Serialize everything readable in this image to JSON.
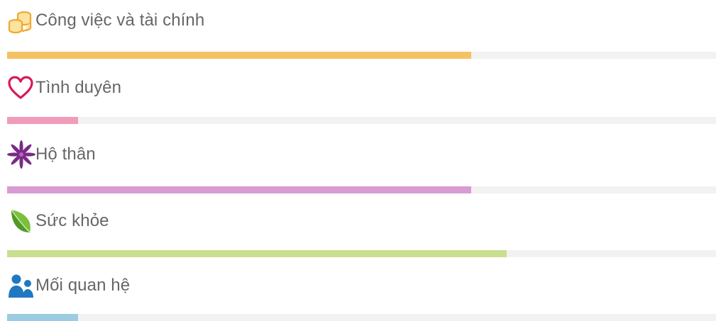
{
  "categories": [
    {
      "key": "career",
      "label": "Công việc và tài chính",
      "icon": "coins-icon",
      "color": "#f5c263",
      "level": 0.655
    },
    {
      "key": "love",
      "label": "Tình duyên",
      "icon": "heart-icon",
      "color": "#f19bba",
      "level": 0.1
    },
    {
      "key": "protection",
      "label": "Hộ thân",
      "icon": "flower-icon",
      "color": "#d99bd3",
      "level": 0.655
    },
    {
      "key": "health",
      "label": "Sức khỏe",
      "icon": "leaf-icon",
      "color": "#c9de8e",
      "level": 0.705
    },
    {
      "key": "relations",
      "label": "Mối quan hệ",
      "icon": "people-icon",
      "color": "#9ccbe2",
      "level": 0.1
    }
  ]
}
